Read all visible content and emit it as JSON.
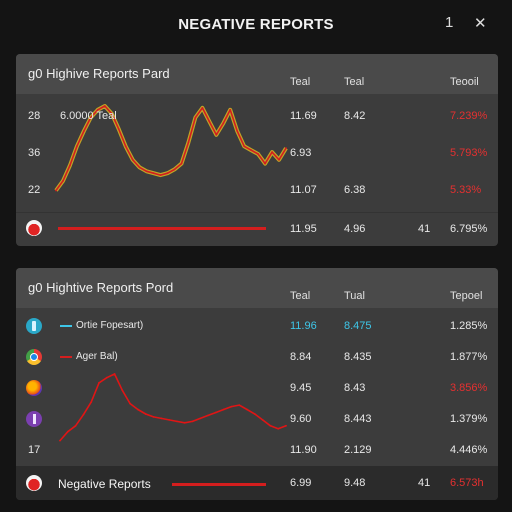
{
  "app": {
    "title": "NEGATIVE REPORTS",
    "menu_glyph": "1",
    "close_glyph": "✕"
  },
  "panel1": {
    "title": "g0 Highive Reports Pard",
    "columns": [
      "Teal",
      "Teal",
      "Teooil"
    ],
    "rows": [
      {
        "label": "28",
        "annotation": "6.0000 Teal",
        "c1": "11.69",
        "c2": "8.42",
        "c3": "7.239%"
      },
      {
        "label": "36",
        "c1": "6.93",
        "c2": "",
        "c3": "5.793%"
      },
      {
        "label": "22",
        "c1": "11.07",
        "c2": "6.38",
        "c3": "5.33%"
      }
    ],
    "footer": {
      "c1": "11.95",
      "c2": "4.96",
      "c2b": "41",
      "c3": "6.795%"
    },
    "chart_data": {
      "type": "line",
      "values": [
        12,
        22,
        38,
        58,
        74,
        88,
        96,
        100,
        92,
        76,
        58,
        44,
        36,
        32,
        30,
        28,
        30,
        34,
        40,
        62,
        88,
        98,
        84,
        70,
        82,
        96,
        74,
        58,
        54,
        50,
        40,
        52,
        44,
        56
      ],
      "series_color": "#d41e1e"
    }
  },
  "panel2": {
    "title": "g0 Hightive Reports Pord",
    "columns": [
      "Teal",
      "Tual",
      "Tepoel"
    ],
    "rows": [
      {
        "icon": "info-icon",
        "legend": "Ortie Fopesart)",
        "legend_color": "#3ec6e8",
        "c1": "11.96",
        "c2": "8.475",
        "c3": "1.285%"
      },
      {
        "icon": "chrome-icon",
        "legend": "Ager Bal)",
        "legend_color": "#d41e1e",
        "c1": "8.84",
        "c2": "8.435",
        "c3": "1.877%"
      },
      {
        "icon": "firefox-icon",
        "c1": "9.45",
        "c2": "8.43",
        "c3": "3.856%"
      },
      {
        "icon": "app-icon",
        "c1": "9.60",
        "c2": "8.443",
        "c3": "1.379%"
      },
      {
        "label": "17",
        "c1": "11.90",
        "c2": "2.129",
        "c3": "4.446%"
      }
    ],
    "footer": {
      "label": "Negative Reports",
      "c1": "6.99",
      "c2": "9.48",
      "c2b": "41",
      "c3": "6.573h"
    },
    "chart_data": {
      "type": "line",
      "values": [
        10,
        22,
        30,
        45,
        62,
        88,
        95,
        100,
        78,
        60,
        52,
        46,
        42,
        40,
        38,
        36,
        34,
        36,
        40,
        44,
        48,
        52,
        56,
        58,
        52,
        46,
        38,
        30,
        26,
        30
      ],
      "series_color": "#e01515"
    }
  }
}
